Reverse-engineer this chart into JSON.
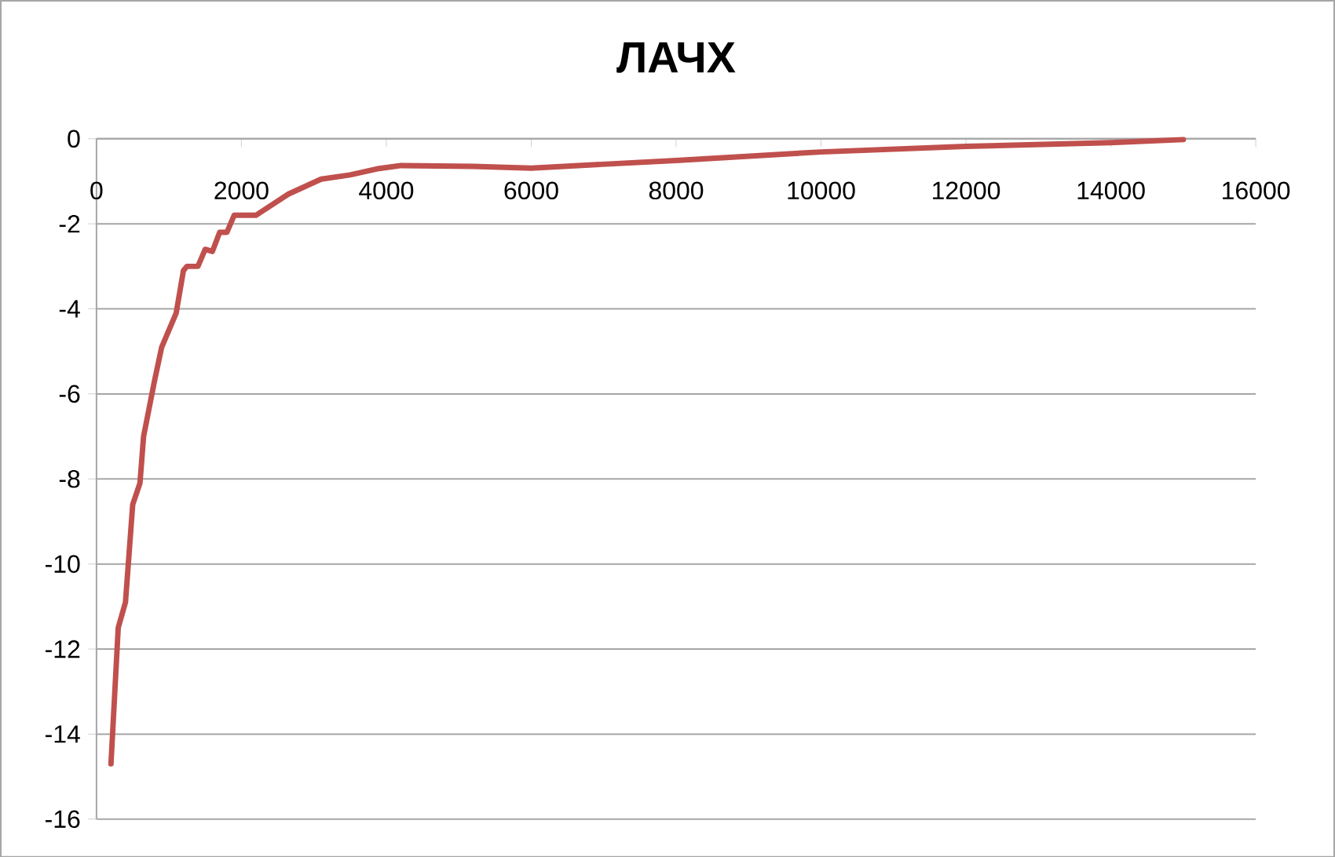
{
  "chart_data": {
    "type": "line",
    "title": "ЛАЧХ",
    "x": [
      200,
      300,
      400,
      500,
      600,
      650,
      800,
      900,
      1100,
      1200,
      1250,
      1400,
      1500,
      1600,
      1700,
      1800,
      1900,
      2200,
      2650,
      3100,
      3500,
      3900,
      4200,
      5200,
      6000,
      8000,
      10000,
      12000,
      14000,
      15000
    ],
    "values": [
      -14.7,
      -11.5,
      -10.9,
      -8.6,
      -8.1,
      -7.0,
      -5.7,
      -4.9,
      -4.1,
      -3.1,
      -3.0,
      -3.0,
      -2.6,
      -2.65,
      -2.2,
      -2.2,
      -1.8,
      -1.8,
      -1.3,
      -0.95,
      -0.85,
      -0.7,
      -0.63,
      -0.65,
      -0.69,
      -0.51,
      -0.31,
      -0.18,
      -0.09,
      -0.02
    ],
    "color": "#c0504d",
    "xlim": [
      0,
      16000
    ],
    "ylim": [
      -16,
      0
    ],
    "xticks": [
      0,
      2000,
      4000,
      6000,
      8000,
      10000,
      12000,
      14000,
      16000
    ],
    "yticks": [
      -16,
      -14,
      -12,
      -10,
      -8,
      -6,
      -4,
      -2,
      0
    ],
    "grid": "y"
  }
}
